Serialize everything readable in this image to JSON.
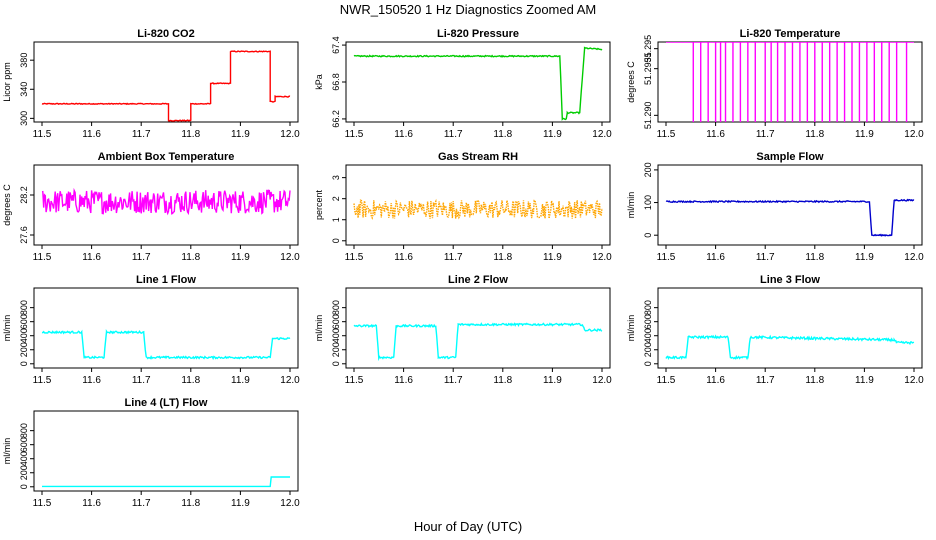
{
  "page": {
    "title": "NWR_150520  1 Hz Diagnostics Zoomed AM",
    "xlabel": "Hour of Day (UTC)"
  },
  "chart_data": [
    {
      "type": "line",
      "title": "Li-820 CO2",
      "ylabel": "Licor ppm",
      "color": "#ff0000",
      "xlim": [
        11.5,
        12.0
      ],
      "ylim": [
        295,
        405
      ],
      "xticks": [
        "11.5",
        "11.6",
        "11.7",
        "11.8",
        "11.9",
        "12.0"
      ],
      "yticks": [
        {
          "v": 300,
          "t": "300"
        },
        {
          "v": 340,
          "t": "340"
        },
        {
          "v": 380,
          "t": "380"
        }
      ],
      "noise": 0.6,
      "series": [
        [
          11.5,
          320
        ],
        [
          11.755,
          320
        ],
        [
          11.755,
          297
        ],
        [
          11.8,
          297
        ],
        [
          11.8,
          320
        ],
        [
          11.84,
          320
        ],
        [
          11.84,
          348
        ],
        [
          11.88,
          348
        ],
        [
          11.88,
          392
        ],
        [
          11.96,
          392
        ],
        [
          11.96,
          323
        ],
        [
          11.97,
          323
        ],
        [
          11.97,
          330
        ],
        [
          12.0,
          330
        ]
      ]
    },
    {
      "type": "line",
      "title": "Li-820 Pressure",
      "ylabel": "kPa",
      "color": "#00cc00",
      "xlim": [
        11.5,
        12.0
      ],
      "ylim": [
        66.15,
        67.45
      ],
      "xticks": [
        "11.5",
        "11.6",
        "11.7",
        "11.8",
        "11.9",
        "12.0"
      ],
      "yticks": [
        {
          "v": 66.2,
          "t": "66.2"
        },
        {
          "v": 66.8,
          "t": "66.8"
        },
        {
          "v": 67.4,
          "t": "67.4"
        }
      ],
      "noise": 0.01,
      "series": [
        [
          11.5,
          67.22
        ],
        [
          11.915,
          67.22
        ],
        [
          11.92,
          66.2
        ],
        [
          11.928,
          66.2
        ],
        [
          11.93,
          66.3
        ],
        [
          11.955,
          66.3
        ],
        [
          11.965,
          67.35
        ],
        [
          12.0,
          67.33
        ]
      ]
    },
    {
      "type": "line",
      "title": "Li-820 Temperature",
      "ylabel": "degrees C",
      "color": "#ff00ff",
      "xlim": [
        11.5,
        12.0
      ],
      "ylim": [
        51.2895,
        51.2955
      ],
      "xticks": [
        "11.5",
        "11.6",
        "11.7",
        "11.8",
        "11.9",
        "12.0"
      ],
      "yticks": [
        {
          "v": 51.29,
          "t": "51.290"
        },
        {
          "v": 51.2935,
          "t": "51.2935"
        },
        {
          "v": 51.295,
          "t": "51.295"
        }
      ],
      "spikes": [
        11.555,
        11.57,
        11.585,
        11.6,
        11.61,
        11.62,
        11.635,
        11.65,
        11.665,
        11.68,
        11.7,
        11.712,
        11.725,
        11.74,
        11.755,
        11.77,
        11.785,
        11.8,
        11.815,
        11.83,
        11.845,
        11.86,
        11.875,
        11.89,
        11.905,
        11.92,
        11.935,
        11.95,
        11.965,
        11.985
      ],
      "base": 51.2955,
      "low": 51.2895
    },
    {
      "type": "line",
      "title": "Ambient Box Temperature",
      "ylabel": "degrees C",
      "color": "#ff00ff",
      "xlim": [
        11.5,
        12.0
      ],
      "ylim": [
        27.45,
        28.65
      ],
      "xticks": [
        "11.5",
        "11.6",
        "11.7",
        "11.8",
        "11.9",
        "12.0"
      ],
      "yticks": [
        {
          "v": 27.6,
          "t": "27.6"
        },
        {
          "v": 28.2,
          "t": "28.2"
        }
      ],
      "noise": 0.18,
      "series": [
        [
          11.5,
          28.1
        ],
        [
          12.0,
          28.1
        ]
      ]
    },
    {
      "type": "line",
      "title": "Gas Stream RH",
      "ylabel": "percent",
      "color": "#ffa500",
      "dotted": true,
      "xlim": [
        11.5,
        12.0
      ],
      "ylim": [
        -0.2,
        3.6
      ],
      "xticks": [
        "11.5",
        "11.6",
        "11.7",
        "11.8",
        "11.9",
        "12.0"
      ],
      "yticks": [
        {
          "v": 0,
          "t": "0"
        },
        {
          "v": 1,
          "t": "1"
        },
        {
          "v": 2,
          "t": "2"
        },
        {
          "v": 3,
          "t": "3"
        }
      ],
      "noise": 0.45,
      "series": [
        [
          11.5,
          1.5
        ],
        [
          12.0,
          1.5
        ]
      ]
    },
    {
      "type": "line",
      "title": "Sample Flow",
      "ylabel": "ml/min",
      "color": "#0000cc",
      "xlim": [
        11.5,
        12.0
      ],
      "ylim": [
        -30,
        215
      ],
      "xticks": [
        "11.5",
        "11.6",
        "11.7",
        "11.8",
        "11.9",
        "12.0"
      ],
      "yticks": [
        {
          "v": 0,
          "t": "0"
        },
        {
          "v": 100,
          "t": "100"
        },
        {
          "v": 200,
          "t": "200"
        }
      ],
      "noise": 2,
      "series": [
        [
          11.5,
          103
        ],
        [
          11.91,
          103
        ],
        [
          11.915,
          0
        ],
        [
          11.955,
          0
        ],
        [
          11.96,
          107
        ],
        [
          12.0,
          107
        ]
      ]
    },
    {
      "type": "line",
      "title": "Line 1 Flow",
      "ylabel": "ml/min",
      "color": "#00ffff",
      "xlim": [
        11.5,
        12.0
      ],
      "ylim": [
        -60,
        1080
      ],
      "xticks": [
        "11.5",
        "11.6",
        "11.7",
        "11.8",
        "11.9",
        "12.0"
      ],
      "yticks": [
        {
          "v": 0,
          "t": "0"
        },
        {
          "v": 200,
          "t": "200"
        },
        {
          "v": 400,
          "t": "400"
        },
        {
          "v": 600,
          "t": "600"
        },
        {
          "v": 800,
          "t": "800"
        }
      ],
      "noise": 14,
      "series": [
        [
          11.5,
          450
        ],
        [
          11.58,
          450
        ],
        [
          11.585,
          90
        ],
        [
          11.625,
          90
        ],
        [
          11.63,
          450
        ],
        [
          11.705,
          450
        ],
        [
          11.71,
          90
        ],
        [
          11.96,
          90
        ],
        [
          11.965,
          360
        ],
        [
          12.0,
          360
        ]
      ]
    },
    {
      "type": "line",
      "title": "Line 2 Flow",
      "ylabel": "ml/min",
      "color": "#00ffff",
      "xlim": [
        11.5,
        12.0
      ],
      "ylim": [
        -60,
        1080
      ],
      "xticks": [
        "11.5",
        "11.6",
        "11.7",
        "11.8",
        "11.9",
        "12.0"
      ],
      "yticks": [
        {
          "v": 0,
          "t": "0"
        },
        {
          "v": 200,
          "t": "200"
        },
        {
          "v": 400,
          "t": "400"
        },
        {
          "v": 600,
          "t": "600"
        },
        {
          "v": 800,
          "t": "800"
        }
      ],
      "noise": 14,
      "series": [
        [
          11.5,
          540
        ],
        [
          11.545,
          540
        ],
        [
          11.55,
          90
        ],
        [
          11.58,
          90
        ],
        [
          11.585,
          540
        ],
        [
          11.665,
          540
        ],
        [
          11.67,
          90
        ],
        [
          11.705,
          90
        ],
        [
          11.71,
          560
        ],
        [
          11.96,
          560
        ],
        [
          11.965,
          480
        ],
        [
          12.0,
          480
        ]
      ]
    },
    {
      "type": "line",
      "title": "Line 3 Flow",
      "ylabel": "ml/min",
      "color": "#00ffff",
      "xlim": [
        11.5,
        12.0
      ],
      "ylim": [
        -60,
        1080
      ],
      "xticks": [
        "11.5",
        "11.6",
        "11.7",
        "11.8",
        "11.9",
        "12.0"
      ],
      "yticks": [
        {
          "v": 0,
          "t": "0"
        },
        {
          "v": 200,
          "t": "200"
        },
        {
          "v": 400,
          "t": "400"
        },
        {
          "v": 600,
          "t": "600"
        },
        {
          "v": 800,
          "t": "800"
        }
      ],
      "noise": 16,
      "series": [
        [
          11.5,
          90
        ],
        [
          11.54,
          90
        ],
        [
          11.545,
          380
        ],
        [
          11.625,
          380
        ],
        [
          11.63,
          90
        ],
        [
          11.665,
          90
        ],
        [
          11.67,
          380
        ],
        [
          11.96,
          340
        ],
        [
          11.965,
          300
        ],
        [
          12.0,
          300
        ]
      ]
    },
    {
      "type": "line",
      "title": "Line 4 (LT) Flow",
      "ylabel": "ml/min",
      "color": "#00ffff",
      "xlim": [
        11.5,
        12.0
      ],
      "ylim": [
        -60,
        1080
      ],
      "xticks": [
        "11.5",
        "11.6",
        "11.7",
        "11.8",
        "11.9",
        "12.0"
      ],
      "yticks": [
        {
          "v": 0,
          "t": "0"
        },
        {
          "v": 200,
          "t": "200"
        },
        {
          "v": 400,
          "t": "400"
        },
        {
          "v": 600,
          "t": "600"
        },
        {
          "v": 800,
          "t": "800"
        }
      ],
      "noise": 0,
      "series": [
        [
          11.5,
          5
        ],
        [
          11.96,
          5
        ],
        [
          11.962,
          140
        ],
        [
          12.0,
          140
        ]
      ]
    }
  ]
}
